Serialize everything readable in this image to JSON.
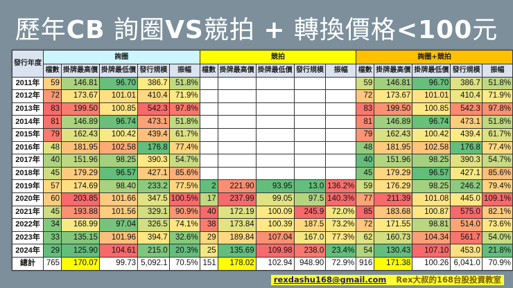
{
  "title": {
    "part1": "歷年",
    "part2": "CB",
    "part3": " 詢圈",
    "part4": "VS",
    "part5": "競拍 ",
    "part6": "+",
    "part7": " 轉換價格",
    "part8": "<100",
    "part9": "元"
  },
  "table": {
    "year_header": "發行年度",
    "columns": [
      "檔數",
      "掛牌最高價",
      "掛牌最低價",
      "發行規模",
      "振幅"
    ],
    "years": [
      "2011年",
      "2012年",
      "2013年",
      "2014年",
      "2015年",
      "2016年",
      "2017年",
      "2018年",
      "2019年",
      "2020年",
      "2021年",
      "2022年",
      "2023年",
      "2024年"
    ],
    "total_label": "總計",
    "scale_colors": {
      "low": "#63be7b",
      "mid": "#ffeb84",
      "high": "#f8696b"
    },
    "groups": [
      {
        "name": "詢圈",
        "header_color": "#ccf5ff",
        "rows": [
          [
            "59",
            "146.81",
            "96.70",
            "386.7",
            "51.8%"
          ],
          [
            "72",
            "173.67",
            "101.01",
            "410.4",
            "71.9%"
          ],
          [
            "83",
            "199.50",
            "100.85",
            "542.3",
            "97.8%"
          ],
          [
            "81",
            "146.89",
            "96.74",
            "473.1",
            "51.8%"
          ],
          [
            "79",
            "162.43",
            "100.42",
            "439.4",
            "61.7%"
          ],
          [
            "48",
            "181.95",
            "102.58",
            "176.8",
            "77.4%"
          ],
          [
            "40",
            "151.96",
            "98.25",
            "390.3",
            "54.7%"
          ],
          [
            "45",
            "179.29",
            "96.57",
            "427.1",
            "85.6%"
          ],
          [
            "57",
            "174.69",
            "98.40",
            "233.2",
            "77.5%"
          ],
          [
            "60",
            "203.85",
            "101.66",
            "347.5",
            "100.5%"
          ],
          [
            "45",
            "193.88",
            "101.56",
            "329.1",
            "90.9%"
          ],
          [
            "34",
            "168.99",
            "97.04",
            "326.5",
            "74.1%"
          ],
          [
            "33",
            "135.15",
            "101.96",
            "394.7",
            "32.6%"
          ],
          [
            "29",
            "125.90",
            "104.61",
            "215.0",
            "20.3%"
          ]
        ],
        "total": [
          "765",
          "170.07",
          "99.73",
          "5,092.1",
          "70.5%"
        ]
      },
      {
        "name": "競拍",
        "header_color": "#ffff00",
        "rows": [
          null,
          null,
          null,
          null,
          null,
          null,
          null,
          null,
          [
            "2",
            "221.90",
            "93.95",
            "13.0",
            "136.2%"
          ],
          [
            "17",
            "237.99",
            "99.05",
            "97.5",
            "140.3%"
          ],
          [
            "40",
            "172.19",
            "100.09",
            "245.9",
            "72.0%"
          ],
          [
            "38",
            "173.84",
            "100.39",
            "187.5",
            "73.2%"
          ],
          [
            "29",
            "189.84",
            "107.04",
            "167.0",
            "77.3%"
          ],
          [
            "25",
            "135.69",
            "109.98",
            "238.0",
            "23.4%"
          ]
        ],
        "total": [
          "151",
          "178.02",
          "102.94",
          "948.90",
          "72.9%"
        ]
      },
      {
        "name": "詢圈+競拍",
        "header_color": "#ffc000",
        "rows": [
          [
            "59",
            "146.81",
            "96.70",
            "386.7",
            "51.8%"
          ],
          [
            "72",
            "173.67",
            "101.01",
            "410.4",
            "71.9%"
          ],
          [
            "83",
            "199.50",
            "100.85",
            "542.3",
            "97.8%"
          ],
          [
            "81",
            "146.89",
            "96.74",
            "473.1",
            "51.8%"
          ],
          [
            "79",
            "162.43",
            "100.42",
            "439.4",
            "61.7%"
          ],
          [
            "48",
            "181.95",
            "102.58",
            "176.8",
            "77.4%"
          ],
          [
            "40",
            "151.96",
            "98.25",
            "390.3",
            "54.7%"
          ],
          [
            "45",
            "179.29",
            "96.57",
            "427.1",
            "85.6%"
          ],
          [
            "59",
            "176.29",
            "98.25",
            "246.2",
            "79.4%"
          ],
          [
            "77",
            "211.39",
            "101.08",
            "445.0",
            "109.1%"
          ],
          [
            "85",
            "183.68",
            "100.87",
            "575.0",
            "82.1%"
          ],
          [
            "72",
            "171.55",
            "98.81",
            "514.0",
            "73.6%"
          ],
          [
            "62",
            "160.73",
            "104.34",
            "561.7",
            "54.0%"
          ],
          [
            "54",
            "130.43",
            "107.10",
            "453.0",
            "21.8%"
          ]
        ],
        "total": [
          "916",
          "171.38",
          "100.26",
          "6,041.0",
          "70.9%"
        ]
      }
    ]
  },
  "footer": {
    "email": "rexdashu168@gmail.com",
    "brand": "Rex大叔的168台股投資教室"
  }
}
